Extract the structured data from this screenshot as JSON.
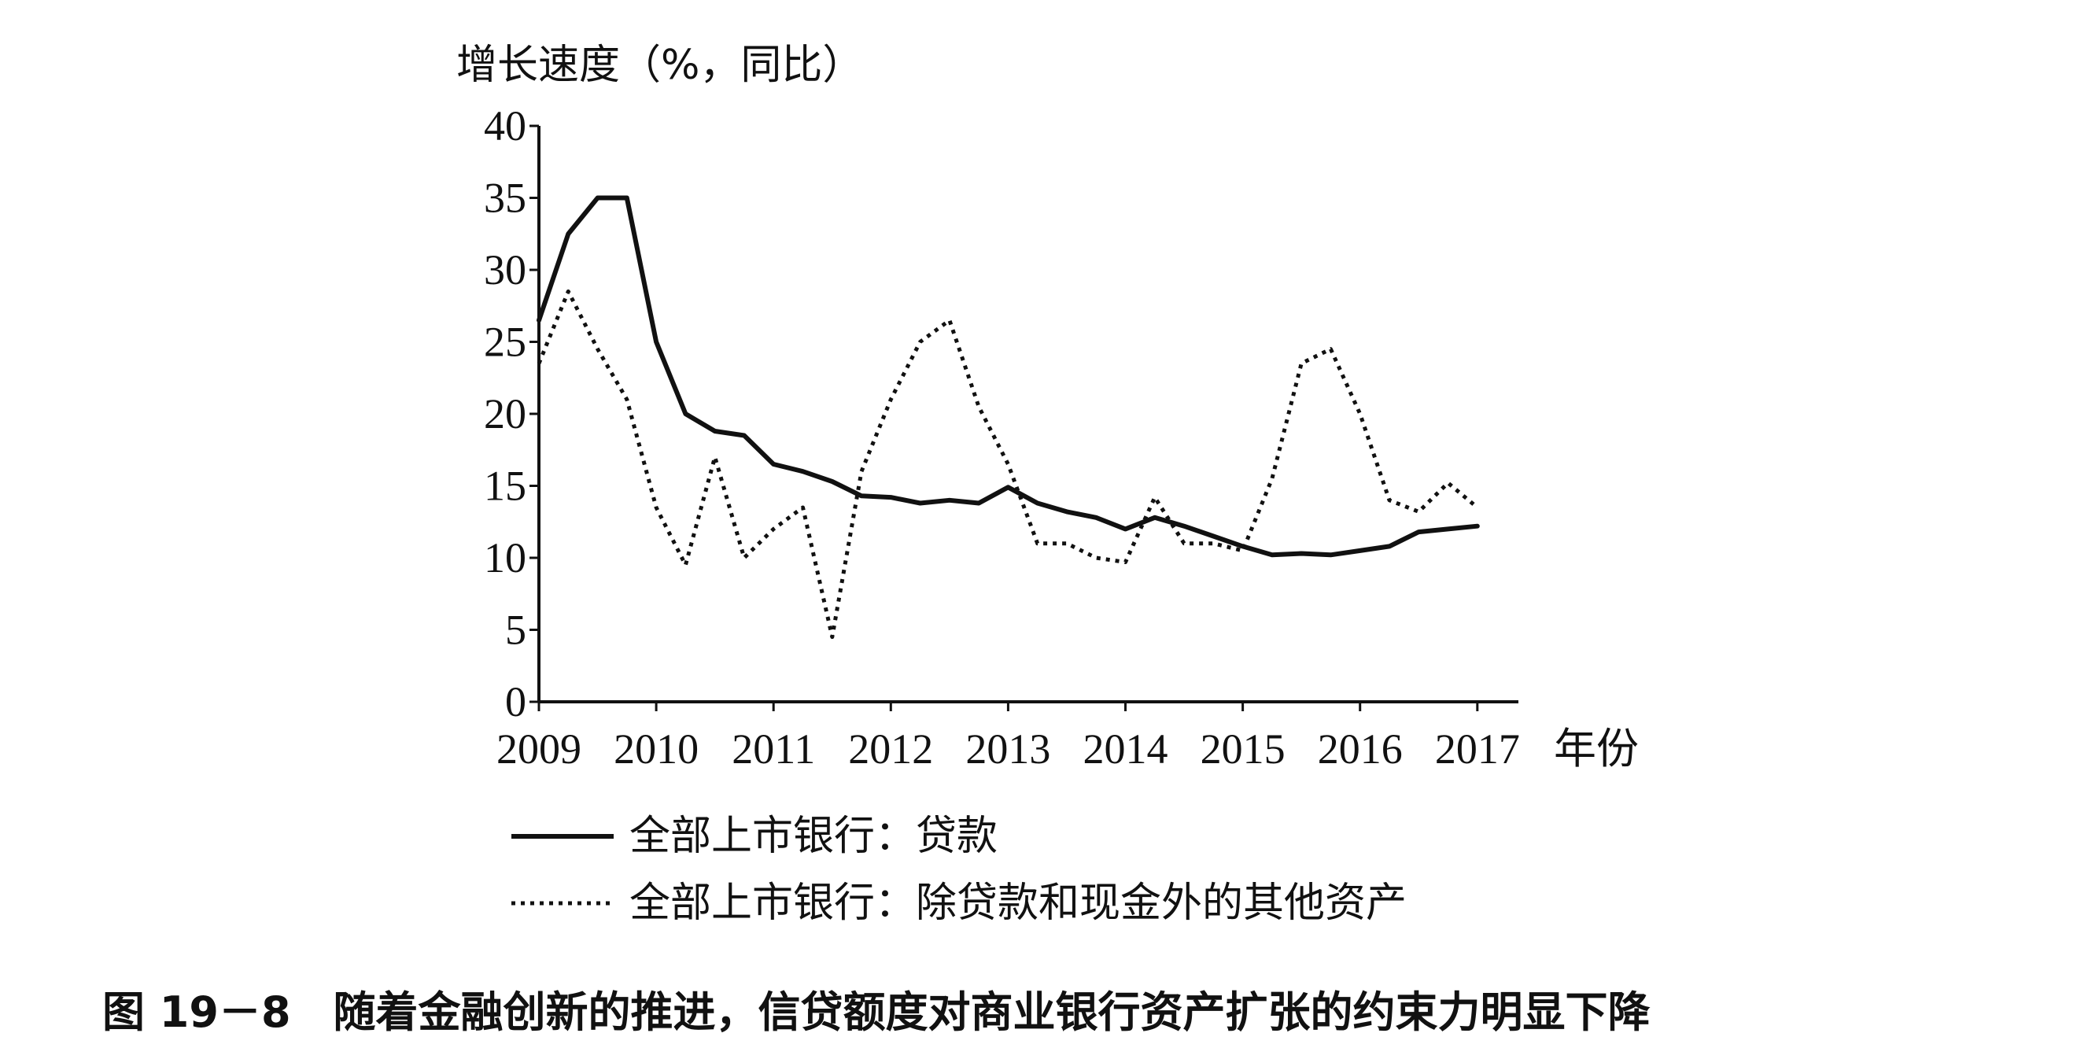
{
  "chart_data": {
    "type": "line",
    "ylabel": "增长速度（%，同比）",
    "xlabel": "年份",
    "x_ticks": [
      "2009",
      "2010",
      "2011",
      "2012",
      "2013",
      "2014",
      "2015",
      "2016",
      "2017"
    ],
    "y_ticks": [
      "0",
      "5",
      "10",
      "15",
      "20",
      "25",
      "30",
      "35",
      "40"
    ],
    "xlim": [
      2009,
      2017.35
    ],
    "ylim": [
      0,
      40
    ],
    "legend_placement": "bottom",
    "grid": false,
    "series": [
      {
        "name": "全部上市银行：贷款",
        "style": "solid",
        "color": "#111111",
        "x": [
          2009.0,
          2009.25,
          2009.5,
          2009.75,
          2010.0,
          2010.25,
          2010.5,
          2010.75,
          2011.0,
          2011.25,
          2011.5,
          2011.75,
          2012.0,
          2012.25,
          2012.5,
          2012.75,
          2013.0,
          2013.25,
          2013.5,
          2013.75,
          2014.0,
          2014.25,
          2014.5,
          2014.75,
          2015.0,
          2015.25,
          2015.5,
          2015.75,
          2016.0,
          2016.25,
          2016.5,
          2016.75,
          2017.0
        ],
        "values": [
          26.5,
          32.5,
          35.0,
          35.0,
          25.0,
          20.0,
          18.8,
          18.5,
          16.5,
          16.0,
          15.3,
          14.3,
          14.2,
          13.8,
          14.0,
          13.8,
          14.9,
          13.8,
          13.2,
          12.8,
          12.0,
          12.8,
          12.2,
          11.5,
          10.8,
          10.2,
          10.3,
          10.2,
          10.5,
          10.8,
          11.8,
          12.0,
          12.2
        ]
      },
      {
        "name": "全部上市银行：除贷款和现金外的其他资产",
        "style": "dotted",
        "color": "#111111",
        "x": [
          2009.0,
          2009.25,
          2009.5,
          2009.75,
          2010.0,
          2010.25,
          2010.5,
          2010.75,
          2011.0,
          2011.25,
          2011.5,
          2011.75,
          2012.0,
          2012.25,
          2012.5,
          2012.75,
          2013.0,
          2013.25,
          2013.5,
          2013.75,
          2014.0,
          2014.25,
          2014.5,
          2014.75,
          2015.0,
          2015.25,
          2015.5,
          2015.75,
          2016.0,
          2016.25,
          2016.5,
          2016.75,
          2017.0
        ],
        "values": [
          23.5,
          28.5,
          24.5,
          21.0,
          13.5,
          9.5,
          17.0,
          10.0,
          12.0,
          13.5,
          4.5,
          16.0,
          21.0,
          25.0,
          26.5,
          20.5,
          16.5,
          11.0,
          11.0,
          10.0,
          9.7,
          14.2,
          11.0,
          11.0,
          10.5,
          15.5,
          23.5,
          24.5,
          20.0,
          14.0,
          13.2,
          15.2,
          13.5
        ]
      }
    ]
  },
  "figure": {
    "caption": "图 19－8　随着金融创新的推进，信贷额度对商业银行资产扩张的约束力明显下降"
  }
}
